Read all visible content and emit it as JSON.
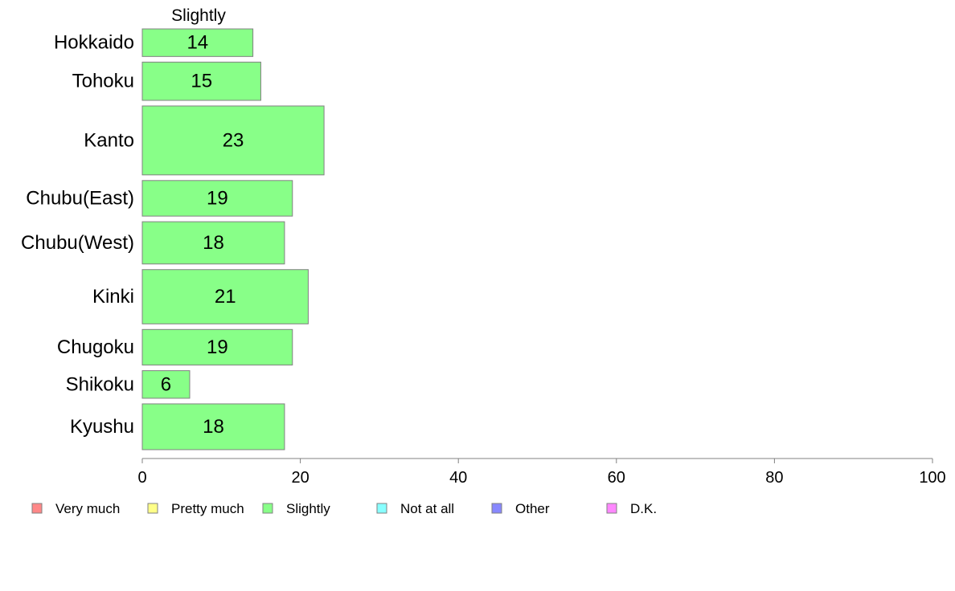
{
  "chart_data": {
    "type": "bar",
    "orientation": "horizontal",
    "column_header": "Slightly",
    "categories": [
      "Hokkaido",
      "Tohoku",
      "Kanto",
      "Chubu(East)",
      "Chubu(West)",
      "Kinki",
      "Chugoku",
      "Shikoku",
      "Kyushu"
    ],
    "values": [
      14,
      15,
      23,
      19,
      18,
      21,
      19,
      6,
      18
    ],
    "data_labels": [
      "14",
      "15",
      "23",
      "19",
      "18",
      "21",
      "19",
      "6",
      "18"
    ],
    "bar_thickness_relative": [
      0.62,
      0.86,
      1.55,
      0.8,
      0.95,
      1.22,
      0.8,
      0.62,
      1.03
    ],
    "xlim": [
      0,
      100
    ],
    "xticks": [
      0,
      20,
      40,
      60,
      80,
      100
    ],
    "xtick_labels": [
      "0",
      "20",
      "40",
      "60",
      "80",
      "100"
    ],
    "bar_color": "#88ff88",
    "bar_edge_color": "#808080",
    "grid": false,
    "legend_position": "bottom",
    "legend": [
      {
        "label": "Very much",
        "color": "#ff8888"
      },
      {
        "label": "Pretty much",
        "color": "#ffff88"
      },
      {
        "label": "Slightly",
        "color": "#88ff88"
      },
      {
        "label": "Not at all",
        "color": "#88ffff"
      },
      {
        "label": "Other",
        "color": "#8888ff"
      },
      {
        "label": "D.K.",
        "color": "#ff88ff"
      }
    ]
  }
}
